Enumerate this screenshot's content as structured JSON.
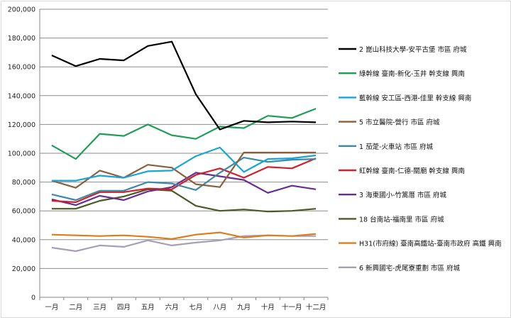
{
  "chart_data": {
    "type": "line",
    "title": "",
    "xlabel": "",
    "ylabel": "",
    "ylim": [
      0,
      200000
    ],
    "y_ticks": [
      "0",
      "20,000",
      "40,000",
      "60,000",
      "80,000",
      "100,000",
      "120,000",
      "140,000",
      "160,000",
      "180,000",
      "200,000"
    ],
    "categories": [
      "一月",
      "二月",
      "三月",
      "四月",
      "五月",
      "六月",
      "七月",
      "八月",
      "九月",
      "十月",
      "十一月",
      "十二月"
    ],
    "grid": "horizontal",
    "legend_position": "right",
    "series": [
      {
        "name": "2 崑山科技大學-安平古堡 市區 府城",
        "color": "#000000",
        "values": [
          168000,
          160500,
          165500,
          164500,
          174500,
          177500,
          141000,
          116500,
          122500,
          121500,
          122000,
          121500
        ]
      },
      {
        "name": "綠幹線 臺南-新化-玉井 幹支線 興南",
        "color": "#1f9e55",
        "values": [
          105500,
          96000,
          113500,
          112000,
          120000,
          112500,
          110000,
          118500,
          117500,
          126000,
          124500,
          131000
        ]
      },
      {
        "name": "藍幹線 安工區-西港-佳里 幹支線 興南",
        "color": "#19a4d6",
        "values": [
          81000,
          81000,
          84500,
          83000,
          87500,
          88000,
          98000,
          104000,
          87000,
          96000,
          96500,
          98500
        ]
      },
      {
        "name": "5 市立醫院-營行 市區 府城",
        "color": "#8b5e3c",
        "values": [
          81000,
          76000,
          88000,
          83000,
          92000,
          90000,
          78500,
          76500,
          100500,
          100500,
          100500,
          100500
        ]
      },
      {
        "name": "1 茄萣-火車站 市區 府城",
        "color": "#3a8ba8",
        "values": [
          71500,
          67500,
          74000,
          74000,
          80000,
          79000,
          74500,
          86500,
          97000,
          94000,
          95500,
          96000
        ]
      },
      {
        "name": "紅幹線 臺南-仁德-關廟 幹支線 興南",
        "color": "#d0202a",
        "values": [
          67000,
          66000,
          73000,
          73000,
          75500,
          75000,
          85000,
          89500,
          83000,
          90500,
          89500,
          96500
        ]
      },
      {
        "name": "3 海東國小-竹篙厝 市區 府城",
        "color": "#6a2c91",
        "values": [
          68000,
          64000,
          70500,
          67500,
          73500,
          76500,
          86500,
          84000,
          81500,
          72500,
          77500,
          75000
        ]
      },
      {
        "name": "18 台南站-福南里 市區 府城",
        "color": "#4b5a24",
        "values": [
          61500,
          61500,
          67000,
          70000,
          75000,
          74000,
          63500,
          60000,
          61000,
          59500,
          60000,
          61500
        ]
      },
      {
        "name": "H31(市府線) 臺南高鐵站-臺南市政府 高鐵 興南",
        "color": "#e07b1a",
        "values": [
          43500,
          43000,
          42500,
          43000,
          42000,
          40500,
          43500,
          45000,
          41500,
          43000,
          42500,
          44000
        ]
      },
      {
        "name": "6 新興國宅-虎尾寮重劃 市區 府城",
        "color": "#a79fb8",
        "values": [
          34500,
          32000,
          36000,
          35000,
          39500,
          36000,
          38000,
          39500,
          42500,
          43000,
          42500,
          42500
        ]
      }
    ]
  }
}
